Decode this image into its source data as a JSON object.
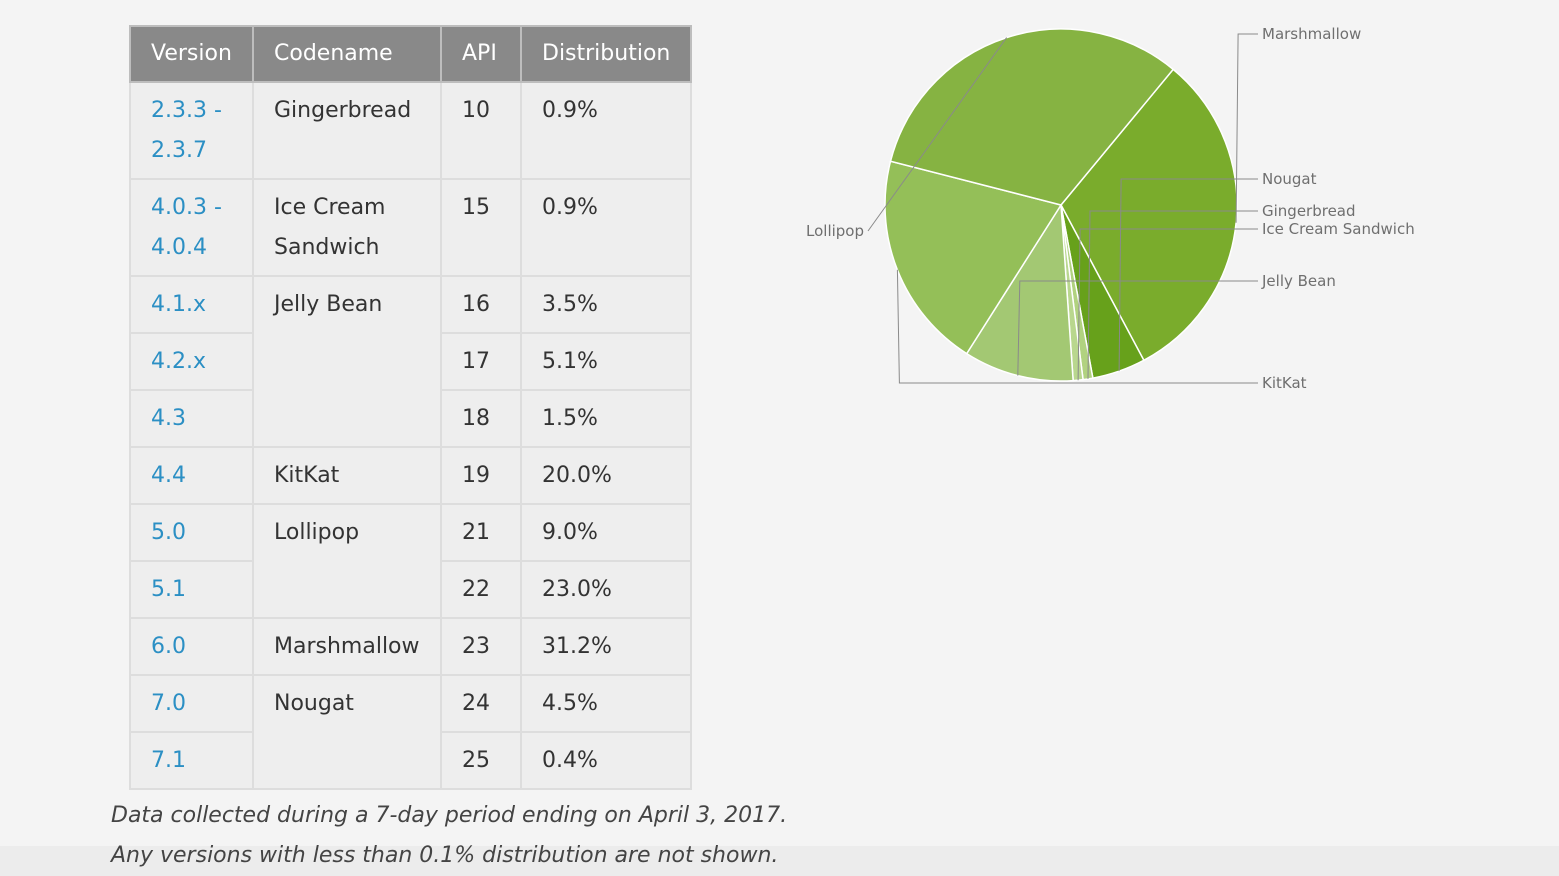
{
  "table": {
    "headers": [
      "Version",
      "Codename",
      "API",
      "Distribution"
    ],
    "rows": [
      {
        "version": [
          "2.3.3 -",
          "2.3.7"
        ],
        "codename": [
          "Gingerbread"
        ],
        "codename_rows": 1,
        "api": "10",
        "distribution": "0.9%"
      },
      {
        "version": [
          "4.0.3 -",
          "4.0.4"
        ],
        "codename": [
          "Ice Cream",
          "Sandwich"
        ],
        "codename_rows": 1,
        "api": "15",
        "distribution": "0.9%"
      },
      {
        "version": [
          "4.1.x"
        ],
        "codename": [
          "Jelly Bean"
        ],
        "codename_rows": 3,
        "api": "16",
        "distribution": "3.5%"
      },
      {
        "version": [
          "4.2.x"
        ],
        "api": "17",
        "distribution": "5.1%"
      },
      {
        "version": [
          "4.3"
        ],
        "api": "18",
        "distribution": "1.5%"
      },
      {
        "version": [
          "4.4"
        ],
        "codename": [
          "KitKat"
        ],
        "codename_rows": 1,
        "api": "19",
        "distribution": "20.0%"
      },
      {
        "version": [
          "5.0"
        ],
        "codename": [
          "Lollipop"
        ],
        "codename_rows": 2,
        "api": "21",
        "distribution": "9.0%"
      },
      {
        "version": [
          "5.1"
        ],
        "api": "22",
        "distribution": "23.0%"
      },
      {
        "version": [
          "6.0"
        ],
        "codename": [
          "Marshmallow"
        ],
        "codename_rows": 1,
        "api": "23",
        "distribution": "31.2%"
      },
      {
        "version": [
          "7.0"
        ],
        "codename": [
          "Nougat"
        ],
        "codename_rows": 2,
        "api": "24",
        "distribution": "4.5%"
      },
      {
        "version": [
          "7.1"
        ],
        "api": "25",
        "distribution": "0.4%"
      }
    ]
  },
  "notes": {
    "line1": "Data collected during a 7-day period ending on April 3, 2017.",
    "line2": "Any versions with less than 0.1% distribution are not shown."
  },
  "chart_data": {
    "type": "pie",
    "title": "",
    "slices": [
      {
        "label": "Marshmallow",
        "value": 31.2,
        "color": "#7aac2c"
      },
      {
        "label": "Nougat",
        "value": 4.9,
        "color": "#67a11b"
      },
      {
        "label": "Gingerbread",
        "value": 0.9,
        "color": "#b1d280"
      },
      {
        "label": "Ice Cream Sandwich",
        "value": 0.9,
        "color": "#b9d78e"
      },
      {
        "label": "Jelly Bean",
        "value": 10.1,
        "color": "#a3c873"
      },
      {
        "label": "KitKat",
        "value": 20.0,
        "color": "#94bf58"
      },
      {
        "label": "Lollipop",
        "value": 32.0,
        "color": "#86b342"
      }
    ]
  }
}
